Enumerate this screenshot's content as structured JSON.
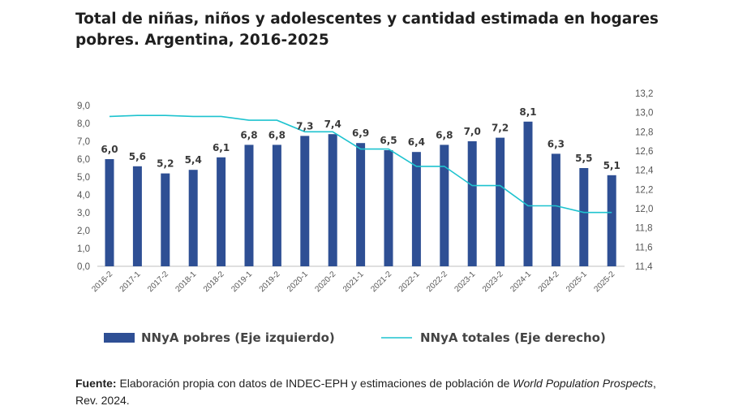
{
  "title": "Total de niñas, niños y adolescentes y cantidad estimada en hogares pobres. Argentina, 2016-2025",
  "source": {
    "label": "Fuente:",
    "text_1": " Elaboración propia con datos de INDEC-EPH y estimaciones de población de ",
    "italic": "World Population Prospects",
    "text_2": ", Rev. 2024."
  },
  "colors": {
    "bar": "#2e4f94",
    "line": "#1ec3cf"
  },
  "chart_data": {
    "type": "bar",
    "categories": [
      "2016-2",
      "2017-1",
      "2017-2",
      "2018-1",
      "2018-2",
      "2019-1",
      "2019-2",
      "2020-1",
      "2020-2",
      "2021-1",
      "2021-2",
      "2022-1",
      "2022-2",
      "2023-1",
      "2023-2",
      "2024-1",
      "2024-2",
      "2025-1",
      "2025-2"
    ],
    "series": [
      {
        "name": "NNyA pobres (Eje izquierdo)",
        "type": "bar",
        "axis": "left",
        "values": [
          6.0,
          5.6,
          5.2,
          5.4,
          6.1,
          6.8,
          6.8,
          7.3,
          7.4,
          6.9,
          6.5,
          6.4,
          6.8,
          7.0,
          7.2,
          8.1,
          6.3,
          5.5,
          5.1
        ],
        "labels": [
          "6,0",
          "5,6",
          "5,2",
          "5,4",
          "6,1",
          "6,8",
          "6,8",
          "7,3",
          "7,4",
          "6,9",
          "6,5",
          "6,4",
          "6,8",
          "7,0",
          "7,2",
          "8,1",
          "6,3",
          "5,5",
          "5,1"
        ]
      },
      {
        "name": "NNyA totales (Eje derecho)",
        "type": "line",
        "axis": "right",
        "values": [
          12.96,
          12.97,
          12.97,
          12.96,
          12.96,
          12.92,
          12.92,
          12.8,
          12.8,
          12.62,
          12.62,
          12.44,
          12.44,
          12.24,
          12.24,
          12.03,
          12.03,
          11.96,
          11.96
        ]
      }
    ],
    "ylim_left": [
      0,
      9
    ],
    "yticks_left": [
      "0,0",
      "1,0",
      "2,0",
      "3,0",
      "4,0",
      "5,0",
      "6,0",
      "7,0",
      "8,0",
      "9,0"
    ],
    "ylim_right": [
      11.4,
      13.2
    ],
    "yticks_right": [
      "11,4",
      "11,6",
      "11,8",
      "12,0",
      "12,2",
      "12,4",
      "12,6",
      "12,8",
      "13,0",
      "13,2"
    ],
    "grid": false,
    "legend_position": "bottom"
  }
}
